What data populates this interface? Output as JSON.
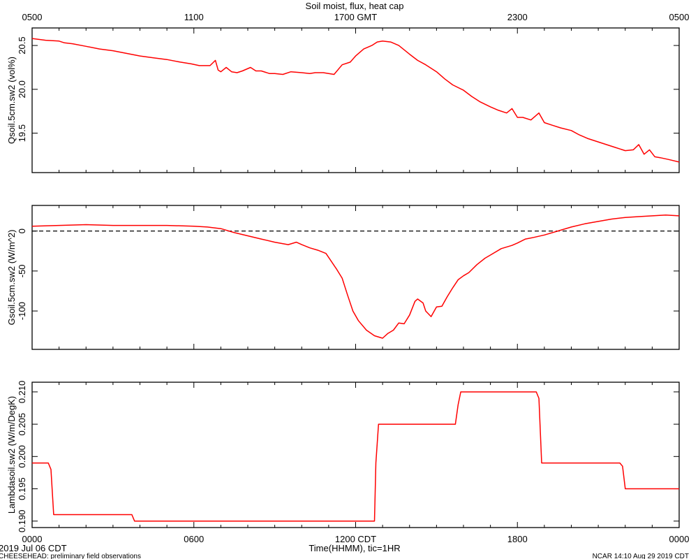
{
  "title": "Soil moist, flux, heat cap",
  "top_axis_labels": [
    "0500",
    "1100",
    "1700 GMT",
    "2300",
    "0500"
  ],
  "bottom_axis_labels": [
    "0000",
    "0600",
    "1200 CDT",
    "1800",
    "0000"
  ],
  "xlabel": "Time(HHMM), tic=1HR",
  "date_label": "2019 Jul 06 CDT",
  "footer_left": "CHEESEHEAD: preliminary field observations",
  "footer_right": "NCAR 14:10 Aug 29 2019 CDT",
  "colors": {
    "series": "#ff0000",
    "axes": "#000000",
    "zero_line": "#000000"
  },
  "chart_data": [
    {
      "type": "line",
      "ylabel": "Qsoil.5cm.sw2 (vol%)",
      "xlim": [
        0,
        24
      ],
      "ylim": [
        19.05,
        20.7
      ],
      "yticks": [
        19.5,
        20.0,
        20.5
      ],
      "ytick_labels": [
        "19.5",
        "20.0",
        "20.5"
      ],
      "grid": false,
      "series": [
        {
          "x": [
            0,
            0.5,
            1,
            1.2,
            1.5,
            2,
            2.5,
            3,
            3.5,
            4,
            4.5,
            5,
            5.5,
            5.9,
            6.2,
            6.6,
            6.8,
            6.9,
            7.0,
            7.2,
            7.4,
            7.6,
            7.8,
            8.1,
            8.3,
            8.5,
            8.8,
            9.0,
            9.3,
            9.6,
            10.0,
            10.3,
            10.5,
            10.8,
            11.0,
            11.2,
            11.5,
            11.8,
            12.0,
            12.3,
            12.6,
            12.8,
            13.0,
            13.3,
            13.6,
            14.0,
            14.3,
            14.6,
            15.0,
            15.3,
            15.6,
            16.0,
            16.3,
            16.6,
            17.0,
            17.3,
            17.6,
            17.8,
            18.0,
            18.2,
            18.5,
            18.8,
            19.0,
            19.3,
            19.6,
            20.0,
            20.3,
            20.6,
            21.0,
            21.3,
            21.6,
            22.0,
            22.3,
            22.5,
            22.7,
            22.9,
            23.1,
            23.3,
            23.6,
            24.0
          ],
          "y": [
            20.58,
            20.56,
            20.55,
            20.53,
            20.52,
            20.49,
            20.46,
            20.44,
            20.41,
            20.38,
            20.36,
            20.34,
            20.31,
            20.29,
            20.27,
            20.27,
            20.33,
            20.22,
            20.2,
            20.25,
            20.2,
            20.19,
            20.21,
            20.25,
            20.21,
            20.21,
            20.18,
            20.18,
            20.17,
            20.2,
            20.19,
            20.18,
            20.19,
            20.19,
            20.18,
            20.17,
            20.28,
            20.31,
            20.38,
            20.46,
            20.5,
            20.54,
            20.55,
            20.54,
            20.5,
            20.4,
            20.33,
            20.28,
            20.2,
            20.12,
            20.05,
            19.99,
            19.92,
            19.86,
            19.8,
            19.76,
            19.73,
            19.78,
            19.68,
            19.68,
            19.65,
            19.73,
            19.62,
            19.59,
            19.56,
            19.53,
            19.48,
            19.44,
            19.4,
            19.37,
            19.34,
            19.3,
            19.31,
            19.37,
            19.26,
            19.31,
            19.23,
            19.22,
            19.2,
            19.17
          ]
        }
      ]
    },
    {
      "type": "line",
      "ylabel": "Gsoil.5cm.sw2 (W/m^2)",
      "xlim": [
        0,
        24
      ],
      "ylim": [
        -148,
        32
      ],
      "yticks": [
        -100,
        -50,
        0
      ],
      "ytick_labels": [
        "-100",
        "-50",
        "0"
      ],
      "reference_line": {
        "y": 0,
        "style": "dashed"
      },
      "grid": false,
      "series": [
        {
          "x": [
            0,
            1,
            2,
            3,
            4,
            5,
            6,
            6.5,
            7,
            7.5,
            8,
            8.5,
            9,
            9.5,
            9.8,
            10.0,
            10.3,
            10.6,
            10.9,
            11.1,
            11.3,
            11.5,
            11.7,
            11.9,
            12.1,
            12.4,
            12.7,
            13.0,
            13.2,
            13.4,
            13.6,
            13.8,
            14.0,
            14.2,
            14.3,
            14.5,
            14.6,
            14.8,
            15.0,
            15.2,
            15.4,
            15.6,
            15.8,
            16.0,
            16.2,
            16.5,
            16.8,
            17.0,
            17.4,
            17.8,
            18.0,
            18.3,
            18.6,
            19.0,
            19.5,
            20.0,
            20.5,
            21.0,
            21.5,
            22.0,
            22.5,
            23.0,
            23.5,
            24.0
          ],
          "y": [
            6,
            7,
            8,
            7,
            7,
            7,
            6,
            5,
            3,
            -2,
            -6,
            -10,
            -14,
            -17,
            -14,
            -17,
            -21,
            -24,
            -28,
            -38,
            -48,
            -59,
            -80,
            -100,
            -112,
            -124,
            -131,
            -134,
            -128,
            -124,
            -115,
            -116,
            -105,
            -88,
            -85,
            -90,
            -100,
            -107,
            -95,
            -94,
            -82,
            -71,
            -61,
            -56,
            -52,
            -42,
            -34,
            -30,
            -22,
            -18,
            -15,
            -10,
            -8,
            -5,
            0,
            5,
            9,
            12,
            15,
            17,
            18,
            19,
            20,
            19
          ]
        }
      ]
    },
    {
      "type": "line",
      "ylabel": "Lambdasoil.sw2 (W/m/DegK)",
      "xlim": [
        0,
        24
      ],
      "ylim": [
        0.189,
        0.2115
      ],
      "yticks": [
        0.19,
        0.195,
        0.2,
        0.205,
        0.21
      ],
      "ytick_labels": [
        "0.190",
        "0.195",
        "0.200",
        "0.205",
        "0.210"
      ],
      "grid": false,
      "series": [
        {
          "x": [
            0,
            0.6,
            0.7,
            0.8,
            3.7,
            3.8,
            12.7,
            12.75,
            12.85,
            15.7,
            15.8,
            15.9,
            18.7,
            18.8,
            18.9,
            21.8,
            21.9,
            22.0,
            24.0
          ],
          "y": [
            0.199,
            0.199,
            0.198,
            0.191,
            0.191,
            0.19,
            0.19,
            0.199,
            0.205,
            0.205,
            0.208,
            0.21,
            0.21,
            0.209,
            0.199,
            0.199,
            0.1985,
            0.195,
            0.195
          ]
        }
      ]
    }
  ]
}
